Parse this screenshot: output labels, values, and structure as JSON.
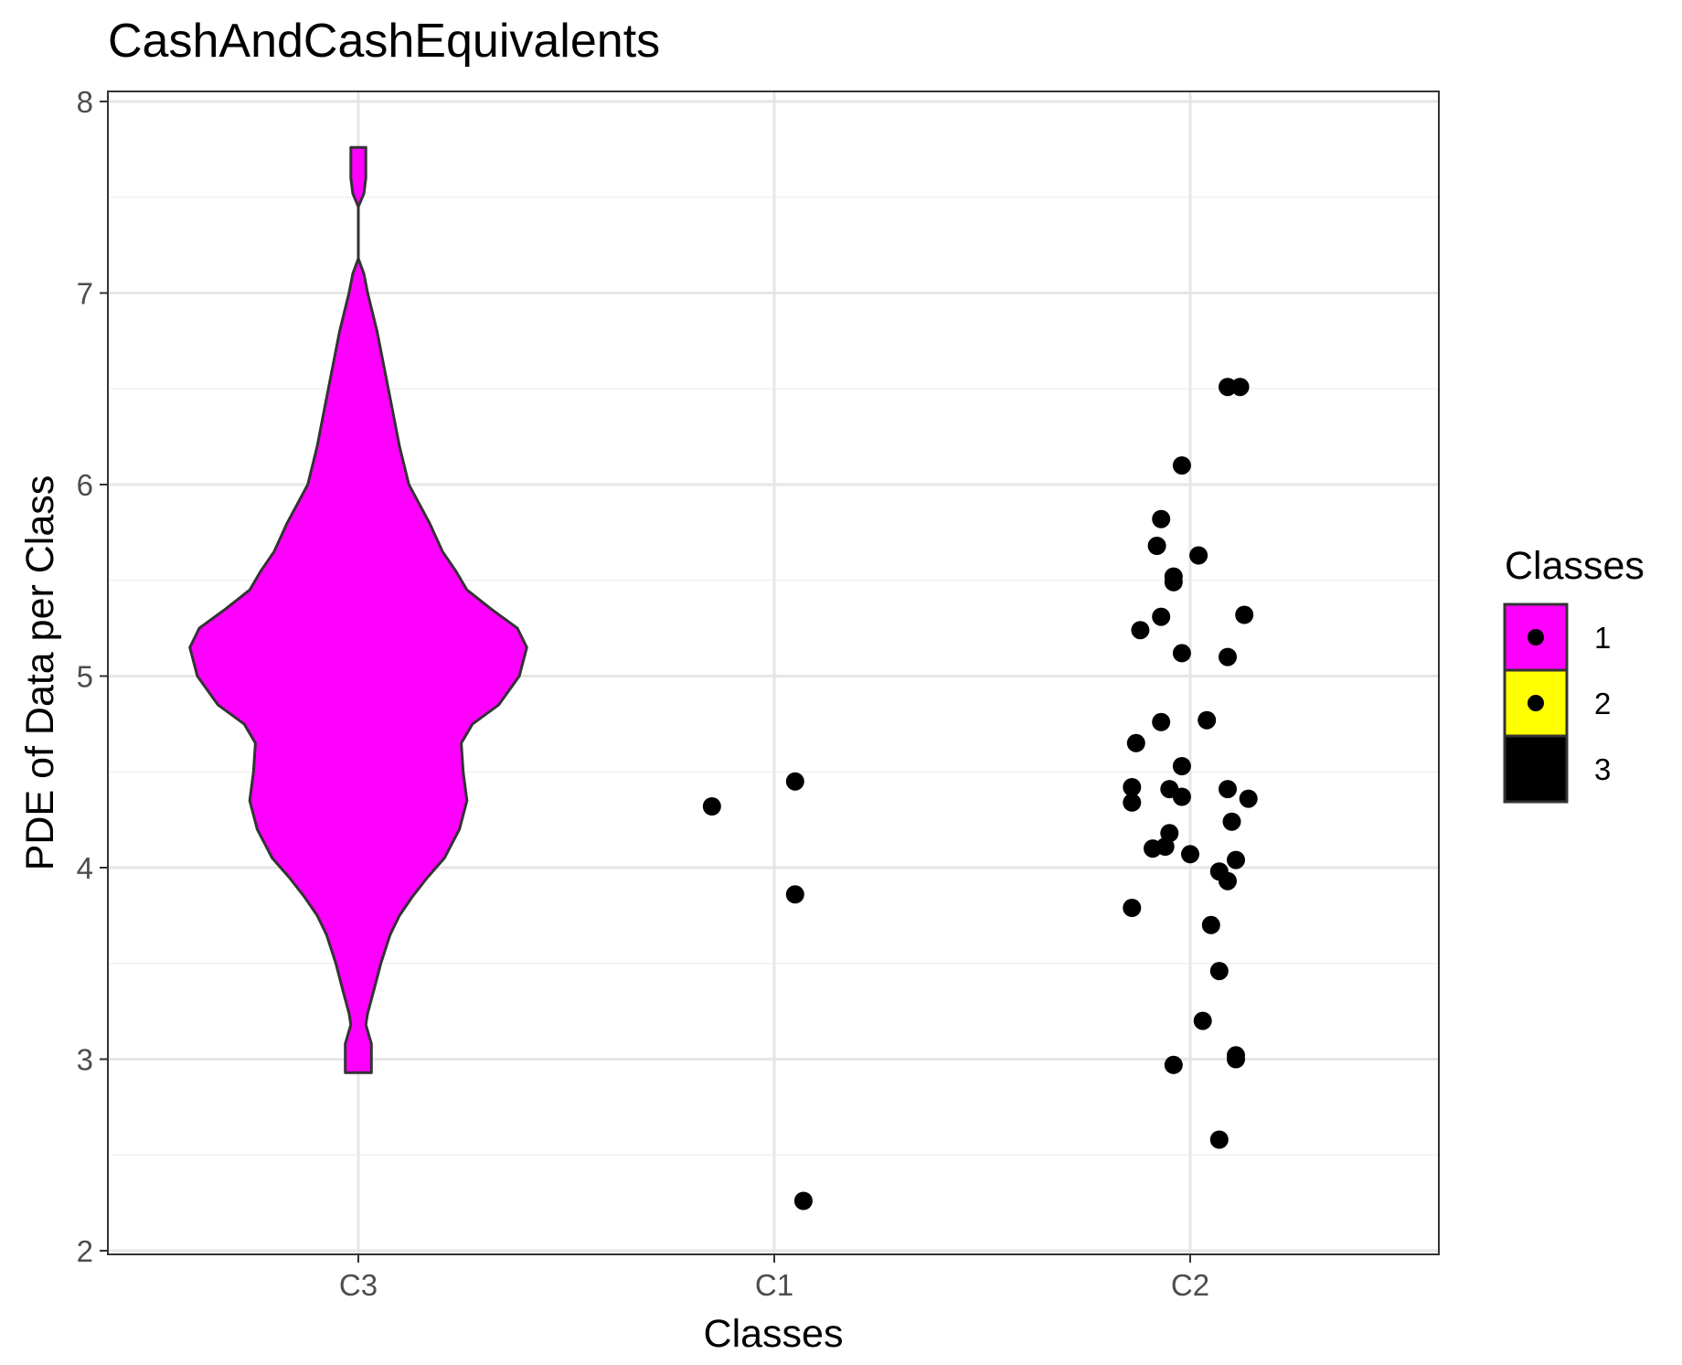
{
  "chart_data": {
    "type": "violin",
    "title": "CashAndCashEquivalents",
    "xlabel": "Classes",
    "ylabel": "PDE of Data per Class",
    "categories": [
      "C3",
      "C1",
      "C2"
    ],
    "ylim": [
      2,
      8
    ],
    "yticks": [
      "2",
      "3",
      "4",
      "5",
      "6",
      "7",
      "8"
    ],
    "grid": true,
    "legend": {
      "title": "Classes",
      "position": "right",
      "entries": [
        {
          "label": "1",
          "color": "#FF00FF",
          "dot": true
        },
        {
          "label": "2",
          "color": "#FFFF00",
          "dot": true
        },
        {
          "label": "3",
          "color": "#000000",
          "dot": false
        }
      ]
    },
    "violin": {
      "category": "C3",
      "color": "#FF00FF",
      "profile": [
        [
          2.93,
          0.07
        ],
        [
          3.08,
          0.07
        ],
        [
          3.18,
          0.04
        ],
        [
          3.24,
          0.05
        ],
        [
          3.35,
          0.08
        ],
        [
          3.5,
          0.12
        ],
        [
          3.65,
          0.17
        ],
        [
          3.75,
          0.22
        ],
        [
          3.85,
          0.29
        ],
        [
          3.95,
          0.37
        ],
        [
          4.05,
          0.46
        ],
        [
          4.2,
          0.54
        ],
        [
          4.35,
          0.58
        ],
        [
          4.5,
          0.56
        ],
        [
          4.65,
          0.55
        ],
        [
          4.75,
          0.61
        ],
        [
          4.85,
          0.75
        ],
        [
          5.0,
          0.86
        ],
        [
          5.15,
          0.9
        ],
        [
          5.25,
          0.85
        ],
        [
          5.35,
          0.71
        ],
        [
          5.45,
          0.58
        ],
        [
          5.55,
          0.52
        ],
        [
          5.65,
          0.45
        ],
        [
          5.8,
          0.38
        ],
        [
          6.0,
          0.27
        ],
        [
          6.2,
          0.22
        ],
        [
          6.4,
          0.18
        ],
        [
          6.6,
          0.14
        ],
        [
          6.8,
          0.1
        ],
        [
          7.0,
          0.05
        ],
        [
          7.1,
          0.03
        ],
        [
          7.18,
          0.0
        ],
        [
          7.45,
          0.0
        ],
        [
          7.52,
          0.03
        ],
        [
          7.6,
          0.04
        ],
        [
          7.76,
          0.04
        ]
      ]
    },
    "series": [
      {
        "category": "C1",
        "points": [
          {
            "offset": -0.15,
            "y": 4.32
          },
          {
            "offset": 0.05,
            "y": 4.45
          },
          {
            "offset": 0.05,
            "y": 3.86
          },
          {
            "offset": 0.07,
            "y": 2.26
          }
        ]
      },
      {
        "category": "C2",
        "points": [
          {
            "offset": 0.09,
            "y": 6.51
          },
          {
            "offset": 0.12,
            "y": 6.51
          },
          {
            "offset": -0.02,
            "y": 6.1
          },
          {
            "offset": -0.07,
            "y": 5.82
          },
          {
            "offset": -0.08,
            "y": 5.68
          },
          {
            "offset": 0.02,
            "y": 5.63
          },
          {
            "offset": -0.04,
            "y": 5.52
          },
          {
            "offset": -0.04,
            "y": 5.49
          },
          {
            "offset": 0.13,
            "y": 5.32
          },
          {
            "offset": -0.07,
            "y": 5.31
          },
          {
            "offset": -0.12,
            "y": 5.24
          },
          {
            "offset": -0.02,
            "y": 5.12
          },
          {
            "offset": 0.09,
            "y": 5.1
          },
          {
            "offset": 0.04,
            "y": 4.77
          },
          {
            "offset": -0.07,
            "y": 4.76
          },
          {
            "offset": -0.13,
            "y": 4.65
          },
          {
            "offset": -0.02,
            "y": 4.53
          },
          {
            "offset": -0.14,
            "y": 4.42
          },
          {
            "offset": -0.05,
            "y": 4.41
          },
          {
            "offset": 0.09,
            "y": 4.41
          },
          {
            "offset": -0.02,
            "y": 4.37
          },
          {
            "offset": 0.14,
            "y": 4.36
          },
          {
            "offset": -0.14,
            "y": 4.34
          },
          {
            "offset": 0.1,
            "y": 4.24
          },
          {
            "offset": -0.05,
            "y": 4.18
          },
          {
            "offset": -0.06,
            "y": 4.11
          },
          {
            "offset": -0.09,
            "y": 4.1
          },
          {
            "offset": 0.0,
            "y": 4.07
          },
          {
            "offset": 0.11,
            "y": 4.04
          },
          {
            "offset": 0.07,
            "y": 3.98
          },
          {
            "offset": 0.09,
            "y": 3.93
          },
          {
            "offset": -0.14,
            "y": 3.79
          },
          {
            "offset": 0.05,
            "y": 3.7
          },
          {
            "offset": 0.07,
            "y": 3.46
          },
          {
            "offset": 0.03,
            "y": 3.2
          },
          {
            "offset": 0.11,
            "y": 3.02
          },
          {
            "offset": 0.11,
            "y": 3.0
          },
          {
            "offset": -0.04,
            "y": 2.97
          },
          {
            "offset": 0.07,
            "y": 2.58
          }
        ]
      }
    ]
  }
}
